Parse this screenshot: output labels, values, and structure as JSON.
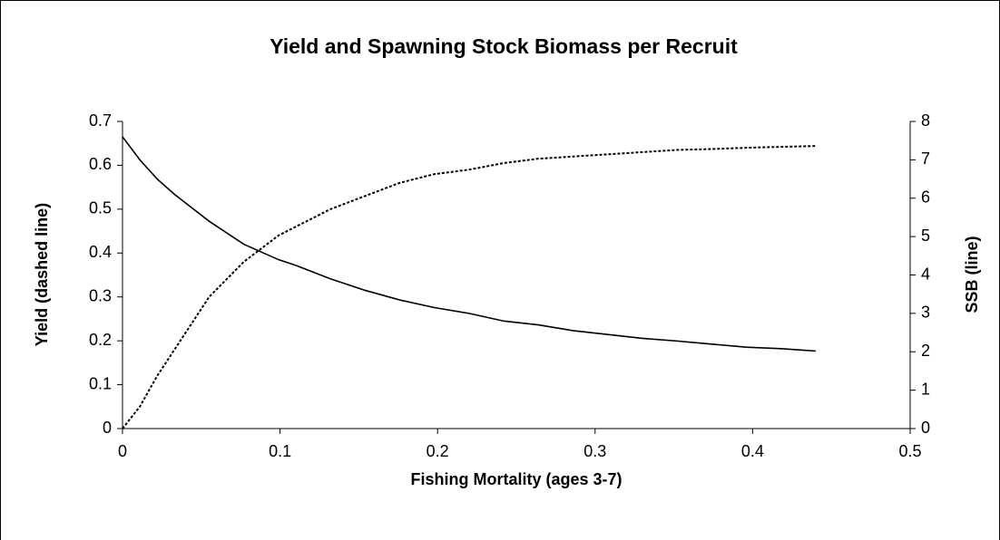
{
  "chart_data": {
    "type": "line",
    "title": "Yield and Spawning Stock Biomass per Recruit",
    "xlabel": "Fishing Mortality (ages 3-7)",
    "ylabel": "Yield (dashed line)",
    "y2label": "SSB (line)",
    "x": [
      0,
      0.011,
      0.022,
      0.033,
      0.044,
      0.055,
      0.066,
      0.077,
      0.088,
      0.099,
      0.11,
      0.132,
      0.154,
      0.176,
      0.198,
      0.22,
      0.242,
      0.264,
      0.286,
      0.308,
      0.33,
      0.352,
      0.374,
      0.396,
      0.418,
      0.44
    ],
    "series": [
      {
        "color": "#000000",
        "dashed": true,
        "axis": "y",
        "values": [
          0,
          0.05,
          0.12,
          0.18,
          0.24,
          0.3,
          0.34,
          0.38,
          0.41,
          0.44,
          0.46,
          0.5,
          0.53,
          0.56,
          0.58,
          0.59,
          0.605,
          0.615,
          0.62,
          0.625,
          0.63,
          0.635,
          0.637,
          0.64,
          0.642,
          0.644
        ]
      },
      {
        "color": "#000000",
        "dashed": false,
        "axis": "y2",
        "values": [
          7.6,
          7.0,
          6.5,
          6.1,
          5.75,
          5.4,
          5.1,
          4.8,
          4.6,
          4.4,
          4.25,
          3.9,
          3.6,
          3.35,
          3.15,
          3.0,
          2.8,
          2.7,
          2.55,
          2.45,
          2.35,
          2.28,
          2.2,
          2.12,
          2.08,
          2.02
        ]
      }
    ],
    "xlim": [
      0,
      0.5
    ],
    "xticks": [
      0,
      0.1,
      0.2,
      0.3,
      0.4,
      0.5
    ],
    "ylim": [
      0,
      0.7
    ],
    "yticks": [
      0,
      0.1,
      0.2,
      0.3,
      0.4,
      0.5,
      0.6,
      0.7
    ],
    "y2lim": [
      0,
      8
    ],
    "y2ticks": [
      0,
      1,
      2,
      3,
      4,
      5,
      6,
      7,
      8
    ],
    "grid": false
  }
}
